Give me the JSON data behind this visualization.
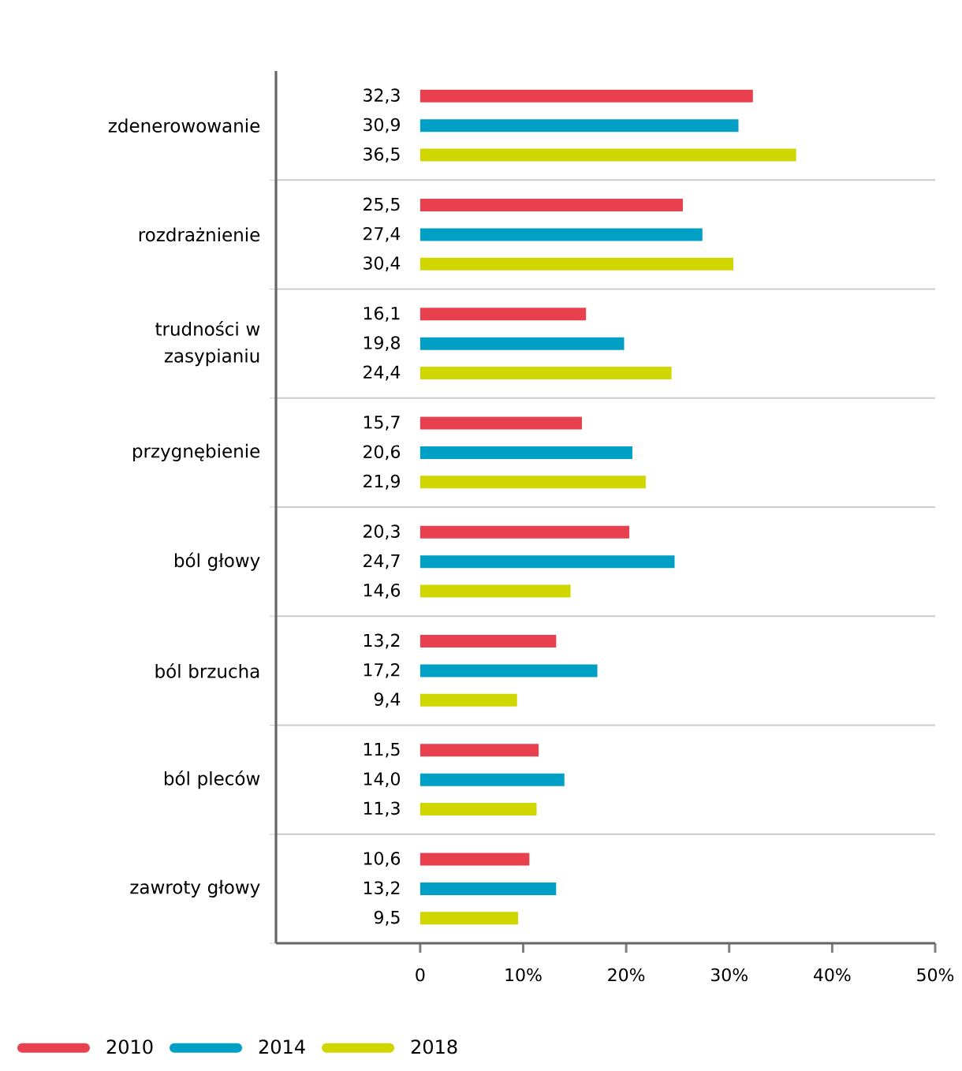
{
  "chart_data": {
    "type": "bar",
    "orientation": "horizontal",
    "categories": [
      "zdenerowowanie",
      "rozdrażnienie",
      "trudności w zasypianiu",
      "przygnębienie",
      "ból głowy",
      "ból brzucha",
      "ból pleców",
      "zawroty głowy"
    ],
    "series": [
      {
        "name": "2010",
        "color": "#e8404e",
        "values": [
          32.3,
          25.5,
          16.1,
          15.7,
          20.3,
          13.2,
          11.5,
          10.6
        ],
        "value_labels": [
          "32,3",
          "25,5",
          "16,1",
          "15,7",
          "20,3",
          "13,2",
          "11,5",
          "10,6"
        ]
      },
      {
        "name": "2014",
        "color": "#00a0c6",
        "values": [
          30.9,
          27.4,
          19.8,
          20.6,
          24.7,
          17.2,
          14.0,
          13.2
        ],
        "value_labels": [
          "30,9",
          "27,4",
          "19,8",
          "20,6",
          "24,7",
          "17,2",
          "14,0",
          "13,2"
        ]
      },
      {
        "name": "2018",
        "color": "#cfd600",
        "values": [
          36.5,
          30.4,
          24.4,
          21.9,
          14.6,
          9.4,
          11.3,
          9.5
        ],
        "value_labels": [
          "36,5",
          "30,4",
          "24,4",
          "21,9",
          "14,6",
          "9,4",
          "11,3",
          "9,5"
        ]
      }
    ],
    "xlim": [
      -14,
      50
    ],
    "xticks": [
      0,
      {
        "value": 10,
        "label": "10%"
      },
      {
        "value": 20,
        "label": "20%"
      },
      {
        "value": 30,
        "label": "30%"
      },
      {
        "value": 40,
        "label": "40%"
      },
      {
        "value": 50,
        "label": "50%"
      }
    ],
    "grid": "y",
    "legend": "bottom"
  }
}
